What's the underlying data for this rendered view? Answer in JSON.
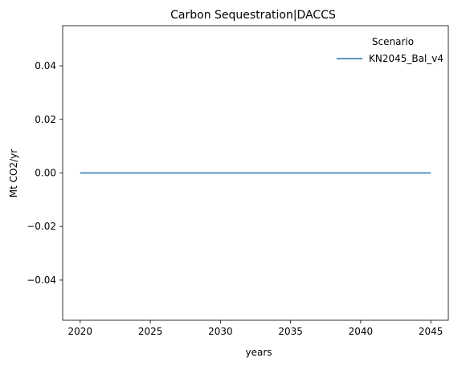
{
  "chart_data": {
    "type": "line",
    "title": "Carbon Sequestration|DACCS",
    "xlabel": "years",
    "ylabel": "Mt CO2/yr",
    "x": [
      2020,
      2025,
      2030,
      2035,
      2040,
      2045
    ],
    "series": [
      {
        "name": "KN2045_Bal_v4",
        "values": [
          0,
          0,
          0,
          0,
          0,
          0
        ],
        "color": "#1f77b4"
      }
    ],
    "xticks": [
      "2020",
      "2025",
      "2030",
      "2035",
      "2040",
      "2045"
    ],
    "yticks": [
      "0.04",
      "0.02",
      "0.00",
      "−0.02",
      "−0.04"
    ],
    "ytick_values": [
      0.04,
      0.02,
      0,
      -0.02,
      -0.04
    ],
    "xlim": [
      2018.75,
      2046.25
    ],
    "ylim": [
      -0.055,
      0.055
    ],
    "grid": false,
    "legend": {
      "title": "Scenario",
      "placement": "top-right"
    }
  }
}
